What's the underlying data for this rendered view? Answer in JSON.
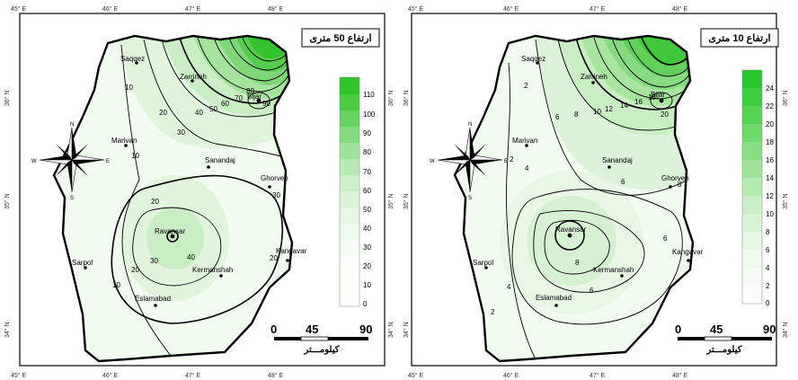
{
  "maps": [
    {
      "title": "ارتفاع 50 متری",
      "legend_ticks": [
        "110",
        "100",
        "90",
        "80",
        "70",
        "60",
        "50",
        "40",
        "30",
        "20",
        "10",
        "0"
      ],
      "scale_labels": [
        "0",
        "45",
        "90"
      ],
      "scale_unit": "کیلومـــتر",
      "top_ticks": [
        "45° E",
        "46° E",
        "47° E",
        "48° E"
      ],
      "bottom_ticks": [
        "45° E",
        "46° E",
        "47° E",
        "48° E"
      ],
      "left_ticks": [
        "36° N",
        "35° N",
        "34° N"
      ],
      "right_ticks": [
        "36° N",
        "35° N",
        "34° N"
      ],
      "cities": [
        "Saqqez",
        "Zarrineh",
        "Bijar",
        "Marivan",
        "Sanandaj",
        "Ghorveh",
        "Ravansar",
        "Kangavar",
        "Sarpol",
        "Kermanshah",
        "Eslamabad"
      ],
      "contour_labels": [
        "10",
        "20",
        "30",
        "40",
        "50",
        "60",
        "70",
        "80",
        "90",
        "20",
        "30",
        "10",
        "40",
        "30",
        "20",
        "20",
        "10"
      ]
    },
    {
      "title": "ارتفاع 10 متری",
      "legend_ticks": [
        "24",
        "22",
        "20",
        "18",
        "16",
        "14",
        "12",
        "10",
        "8",
        "6",
        "4",
        "2",
        "0"
      ],
      "scale_labels": [
        "0",
        "45",
        "90"
      ],
      "scale_unit": "کیلومـــتر",
      "top_ticks": [
        "45° E",
        "46° E",
        "47° E",
        "48° E"
      ],
      "bottom_ticks": [
        "45° E",
        "46° E",
        "47° E",
        "48° E"
      ],
      "left_ticks": [
        "36° N",
        "35° N",
        "34° N"
      ],
      "right_ticks": [
        "36° N",
        "35° N",
        "34° N"
      ],
      "cities": [
        "Saqqez",
        "Zarrineh",
        "Bijar",
        "Marivan",
        "Sanandaj",
        "Ghorveh",
        "Ravansar",
        "Kangavar",
        "Sarpol",
        "Kermanshah",
        "Eslamabad"
      ],
      "contour_labels": [
        "2",
        "6",
        "8",
        "10",
        "12",
        "14",
        "16",
        "18",
        "20",
        "2",
        "4",
        "6",
        "8",
        "8",
        "6",
        "4",
        "6",
        "2"
      ]
    }
  ],
  "compass": [
    "N",
    "S",
    "E",
    "W"
  ],
  "colors": {
    "low": "#f2fbf0",
    "high": "#27c92e",
    "line": "#000000",
    "frame": "#000000"
  }
}
